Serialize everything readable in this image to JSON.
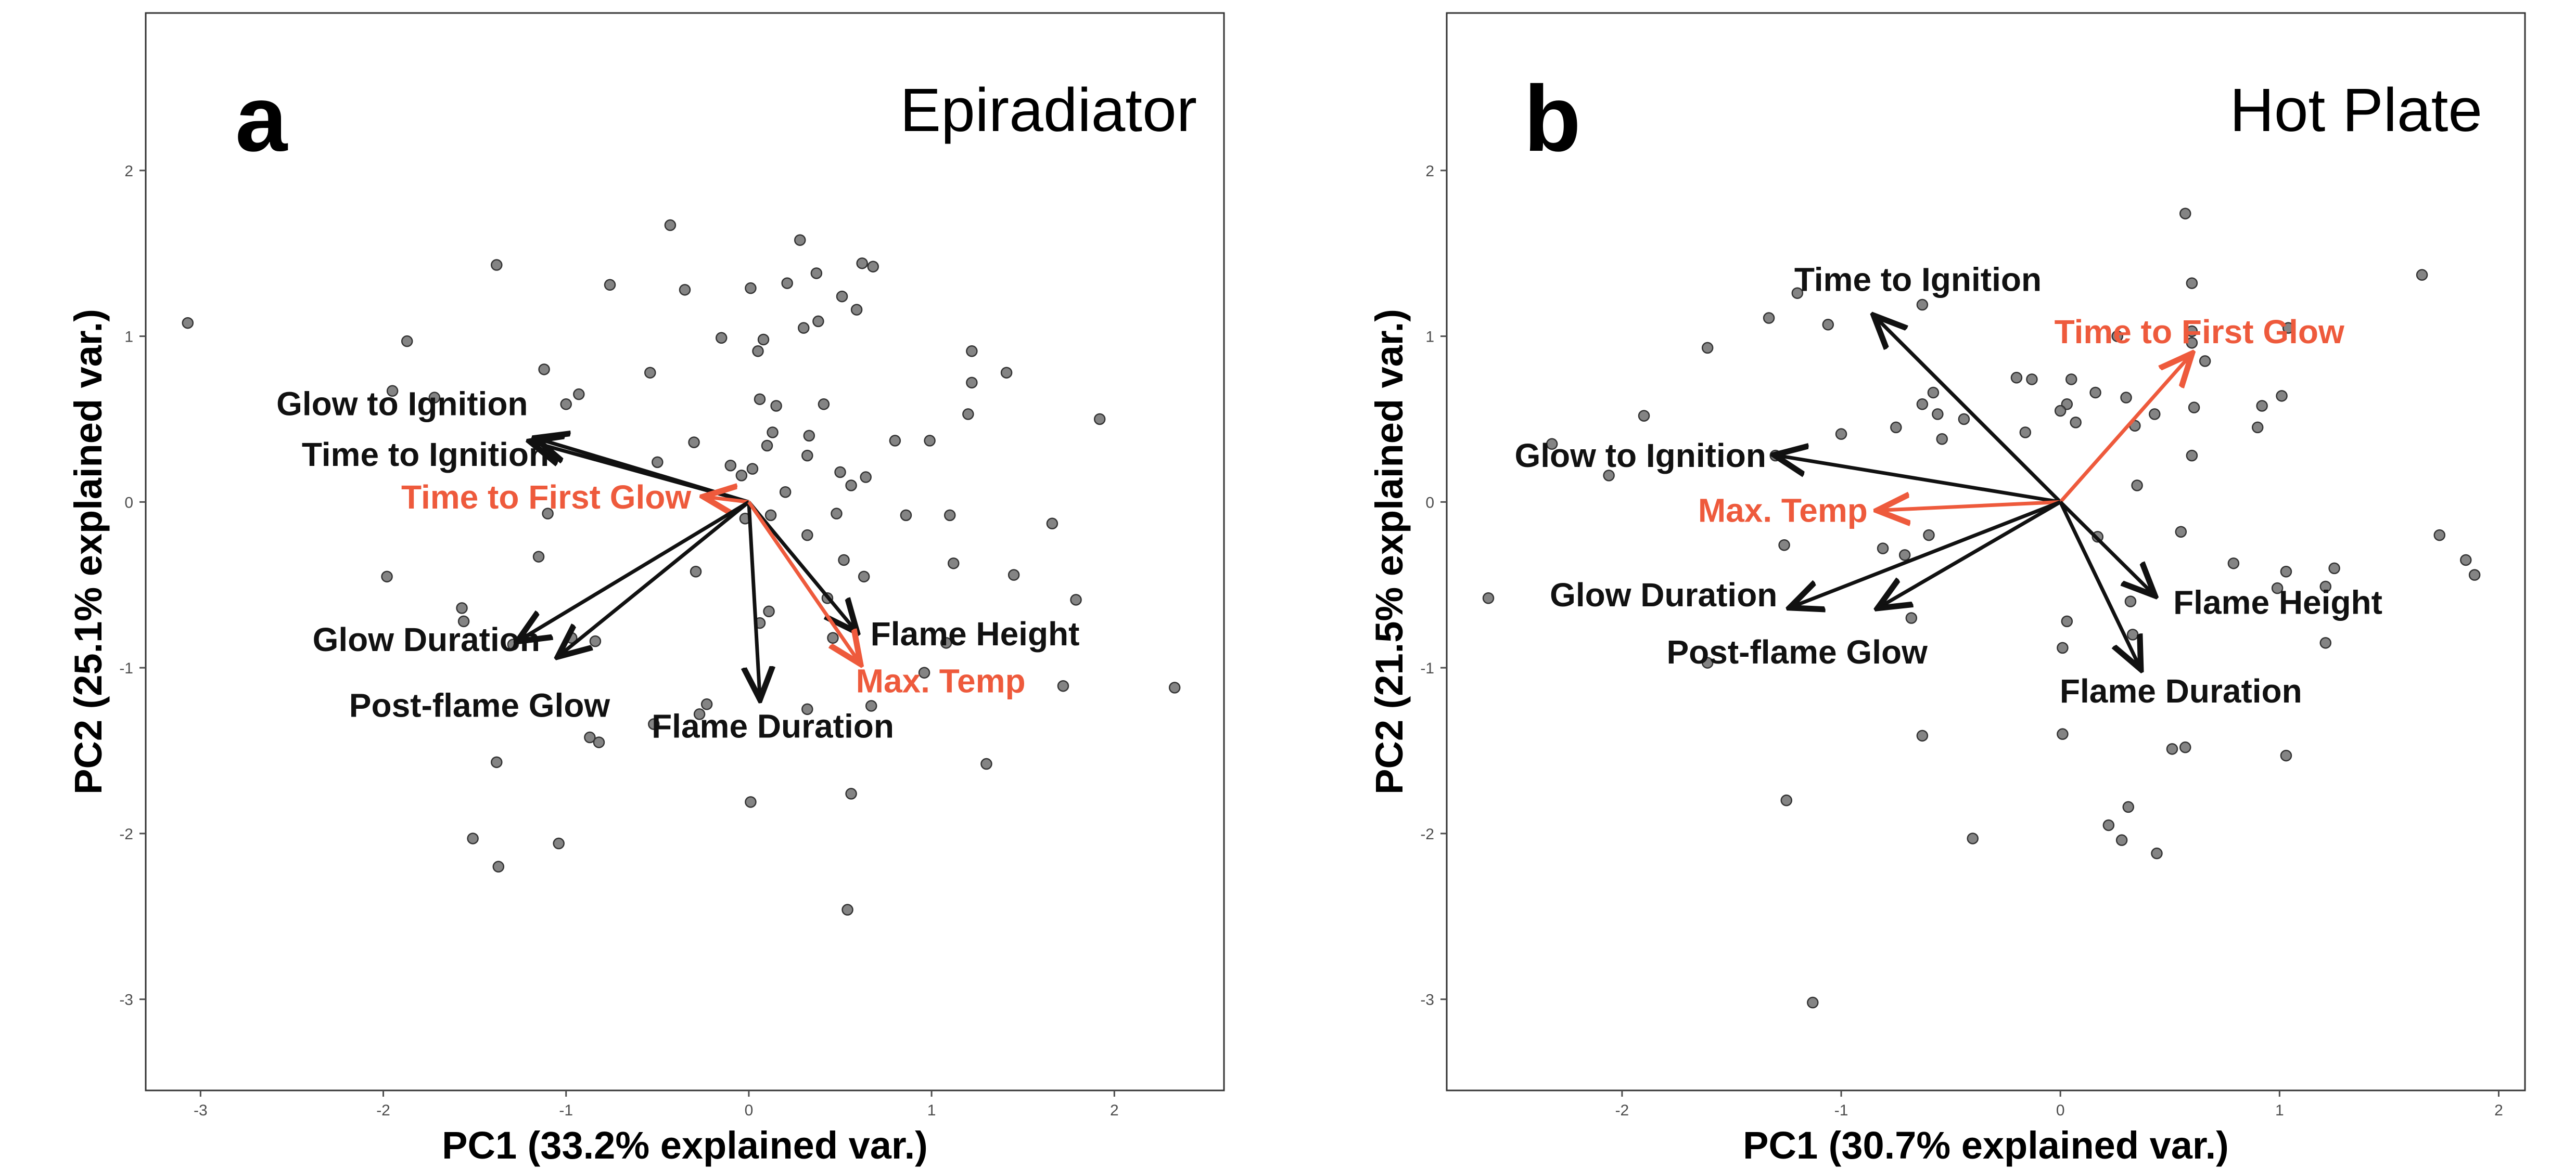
{
  "colors": {
    "point_fill": "#6e6e6e",
    "point_stroke": "#333333",
    "black_arrow": "#111111",
    "red_arrow": "#ee5a3c",
    "panel_border": "#333333",
    "tick": "#4d4d4d"
  },
  "chart_data": [
    {
      "type": "scatter",
      "panel": "a",
      "title": "Epiradiator",
      "xlabel": "PC1 (33.2% explained var.)",
      "ylabel": "PC2 (25.1% explained var.)",
      "xlim": [
        -3.3,
        2.6
      ],
      "ylim": [
        -3.55,
        2.95
      ],
      "x_ticks": [
        -3,
        -2,
        -1,
        0,
        1,
        2
      ],
      "y_ticks": [
        -3,
        -2,
        -1,
        0,
        1,
        2
      ],
      "grid": false,
      "points": [
        [
          -3.07,
          1.08
        ],
        [
          -1.38,
          1.43
        ],
        [
          -0.43,
          1.67
        ],
        [
          0.01,
          1.29
        ],
        [
          0.28,
          1.58
        ],
        [
          0.62,
          1.44
        ],
        [
          0.68,
          1.42
        ],
        [
          0.37,
          1.38
        ],
        [
          -0.76,
          1.31
        ],
        [
          -0.35,
          1.28
        ],
        [
          0.51,
          1.24
        ],
        [
          0.21,
          1.32
        ],
        [
          0.59,
          1.16
        ],
        [
          0.38,
          1.09
        ],
        [
          0.3,
          1.05
        ],
        [
          -1.87,
          0.97
        ],
        [
          -0.15,
          0.99
        ],
        [
          0.08,
          0.98
        ],
        [
          0.05,
          0.91
        ],
        [
          1.22,
          0.91
        ],
        [
          -0.54,
          0.78
        ],
        [
          -1.12,
          0.8
        ],
        [
          1.41,
          0.78
        ],
        [
          1.22,
          0.72
        ],
        [
          -1.95,
          0.67
        ],
        [
          -1.72,
          0.63
        ],
        [
          -0.93,
          0.65
        ],
        [
          -1.0,
          0.59
        ],
        [
          0.06,
          0.62
        ],
        [
          0.15,
          0.58
        ],
        [
          0.41,
          0.59
        ],
        [
          1.2,
          0.53
        ],
        [
          1.92,
          0.5
        ],
        [
          0.13,
          0.42
        ],
        [
          0.33,
          0.4
        ],
        [
          0.8,
          0.37
        ],
        [
          0.99,
          0.37
        ],
        [
          -0.3,
          0.36
        ],
        [
          0.1,
          0.34
        ],
        [
          -0.5,
          0.24
        ],
        [
          0.32,
          0.28
        ],
        [
          -0.1,
          0.22
        ],
        [
          0.02,
          0.2
        ],
        [
          -0.04,
          0.16
        ],
        [
          0.5,
          0.18
        ],
        [
          0.64,
          0.15
        ],
        [
          0.56,
          0.1
        ],
        [
          -1.1,
          -0.07
        ],
        [
          0.12,
          -0.08
        ],
        [
          0.2,
          0.06
        ],
        [
          -0.02,
          -0.1
        ],
        [
          0.32,
          -0.2
        ],
        [
          0.48,
          -0.07
        ],
        [
          0.86,
          -0.08
        ],
        [
          1.1,
          -0.08
        ],
        [
          1.66,
          -0.13
        ],
        [
          -1.15,
          -0.33
        ],
        [
          0.52,
          -0.35
        ],
        [
          1.12,
          -0.37
        ],
        [
          -0.29,
          -0.42
        ],
        [
          -1.98,
          -0.45
        ],
        [
          1.45,
          -0.44
        ],
        [
          0.63,
          -0.45
        ],
        [
          0.43,
          -0.58
        ],
        [
          1.79,
          -0.59
        ],
        [
          -1.57,
          -0.64
        ],
        [
          -1.56,
          -0.72
        ],
        [
          0.11,
          -0.66
        ],
        [
          0.06,
          -0.73
        ],
        [
          -0.97,
          -0.82
        ],
        [
          -0.84,
          -0.84
        ],
        [
          0.46,
          -0.82
        ],
        [
          1.08,
          -0.85
        ],
        [
          -1.29,
          -0.86
        ],
        [
          0.96,
          -1.03
        ],
        [
          1.72,
          -1.11
        ],
        [
          2.33,
          -1.12
        ],
        [
          -0.23,
          -1.22
        ],
        [
          0.67,
          -1.23
        ],
        [
          -0.52,
          -1.34
        ],
        [
          -0.87,
          -1.42
        ],
        [
          -0.82,
          -1.45
        ],
        [
          1.3,
          -1.58
        ],
        [
          -1.38,
          -1.57
        ],
        [
          0.56,
          -1.76
        ],
        [
          0.01,
          -1.81
        ],
        [
          -1.51,
          -2.03
        ],
        [
          -1.04,
          -2.06
        ],
        [
          -1.37,
          -2.2
        ],
        [
          0.54,
          -2.46
        ],
        [
          -0.27,
          -1.28
        ],
        [
          0.32,
          -1.25
        ]
      ],
      "vectors": [
        {
          "label": "Glow to Ignition",
          "x": -1.18,
          "y": 0.36,
          "color": "black"
        },
        {
          "label": "Time to Ignition",
          "x": -1.15,
          "y": 0.38,
          "color": "black"
        },
        {
          "label": "Time to First Glow",
          "x": -0.23,
          "y": 0.03,
          "color": "red"
        },
        {
          "label": "Glow Duration",
          "x": -1.25,
          "y": -0.83,
          "color": "black"
        },
        {
          "label": "Post-flame Glow",
          "x": -1.03,
          "y": -0.92,
          "color": "black"
        },
        {
          "label": "Flame Duration",
          "x": 0.06,
          "y": -1.17,
          "color": "black"
        },
        {
          "label": "Flame Height",
          "x": 0.58,
          "y": -0.77,
          "color": "black"
        },
        {
          "label": "Max. Temp",
          "x": 0.6,
          "y": -0.96,
          "color": "red"
        }
      ]
    },
    {
      "type": "scatter",
      "panel": "b",
      "title": "Hot Plate",
      "xlabel": "PC1 (30.7% explained var.)",
      "ylabel": "PC2 (21.5% explained var.)",
      "xlim": [
        -2.8,
        2.12
      ],
      "ylim": [
        -3.55,
        2.95
      ],
      "x_ticks": [
        -2,
        -1,
        0,
        1,
        2
      ],
      "y_ticks": [
        -3,
        -2,
        -1,
        0,
        1,
        2
      ],
      "grid": false,
      "points": [
        [
          0.57,
          1.74
        ],
        [
          0.6,
          1.32
        ],
        [
          1.65,
          1.37
        ],
        [
          -0.63,
          1.19
        ],
        [
          -1.06,
          1.07
        ],
        [
          -1.2,
          1.26
        ],
        [
          -1.33,
          1.11
        ],
        [
          0.6,
          1.03
        ],
        [
          0.26,
          1.0
        ],
        [
          -1.61,
          0.93
        ],
        [
          1.04,
          1.05
        ],
        [
          0.6,
          0.96
        ],
        [
          0.66,
          0.85
        ],
        [
          -0.2,
          0.75
        ],
        [
          0.05,
          0.74
        ],
        [
          -0.58,
          0.66
        ],
        [
          -0.13,
          0.74
        ],
        [
          0.16,
          0.66
        ],
        [
          0.3,
          0.63
        ],
        [
          0.61,
          0.57
        ],
        [
          1.01,
          0.64
        ],
        [
          0.92,
          0.58
        ],
        [
          -0.63,
          0.59
        ],
        [
          0.03,
          0.59
        ],
        [
          -1.9,
          0.52
        ],
        [
          -0.75,
          0.45
        ],
        [
          -0.44,
          0.5
        ],
        [
          -0.56,
          0.53
        ],
        [
          -1.0,
          0.41
        ],
        [
          -0.54,
          0.38
        ],
        [
          0.0,
          0.55
        ],
        [
          0.43,
          0.53
        ],
        [
          0.9,
          0.45
        ],
        [
          -0.16,
          0.42
        ],
        [
          0.07,
          0.48
        ],
        [
          0.34,
          0.46
        ],
        [
          0.6,
          0.28
        ],
        [
          0.35,
          0.1
        ],
        [
          -2.32,
          0.35
        ],
        [
          -1.3,
          0.28
        ],
        [
          -2.06,
          0.16
        ],
        [
          1.73,
          -0.2
        ],
        [
          1.85,
          -0.35
        ],
        [
          1.89,
          -0.44
        ],
        [
          -0.6,
          -0.2
        ],
        [
          -0.81,
          -0.28
        ],
        [
          0.17,
          -0.21
        ],
        [
          0.55,
          -0.18
        ],
        [
          -1.26,
          -0.26
        ],
        [
          1.03,
          -0.42
        ],
        [
          1.25,
          -0.4
        ],
        [
          -0.71,
          -0.32
        ],
        [
          0.79,
          -0.37
        ],
        [
          0.99,
          -0.52
        ],
        [
          1.21,
          -0.51
        ],
        [
          -2.61,
          -0.58
        ],
        [
          0.32,
          -0.6
        ],
        [
          -0.68,
          -0.7
        ],
        [
          0.03,
          -0.72
        ],
        [
          0.33,
          -0.8
        ],
        [
          -1.61,
          -0.97
        ],
        [
          0.01,
          -0.88
        ],
        [
          1.21,
          -0.85
        ],
        [
          -0.63,
          -1.41
        ],
        [
          0.01,
          -1.4
        ],
        [
          0.57,
          -1.48
        ],
        [
          0.51,
          -1.49
        ],
        [
          1.03,
          -1.53
        ],
        [
          -1.25,
          -1.8
        ],
        [
          0.22,
          -1.95
        ],
        [
          0.31,
          -1.84
        ],
        [
          -0.4,
          -2.03
        ],
        [
          0.28,
          -2.04
        ],
        [
          0.44,
          -2.12
        ],
        [
          -1.13,
          -3.02
        ]
      ],
      "vectors": [
        {
          "label": "Time to Ignition",
          "x": -0.84,
          "y": 1.11,
          "color": "black"
        },
        {
          "label": "Time to First Glow",
          "x": 0.59,
          "y": 0.88,
          "color": "red"
        },
        {
          "label": "Glow to Ignition",
          "x": -1.29,
          "y": 0.28,
          "color": "black"
        },
        {
          "label": "Max. Temp",
          "x": -0.82,
          "y": -0.05,
          "color": "red"
        },
        {
          "label": "Glow Duration",
          "x": -1.22,
          "y": -0.63,
          "color": "black"
        },
        {
          "label": "Post-flame Glow",
          "x": -0.82,
          "y": -0.63,
          "color": "black"
        },
        {
          "label": "Flame Height",
          "x": 0.42,
          "y": -0.55,
          "color": "black"
        },
        {
          "label": "Flame Duration",
          "x": 0.36,
          "y": -0.99,
          "color": "black"
        }
      ]
    }
  ]
}
